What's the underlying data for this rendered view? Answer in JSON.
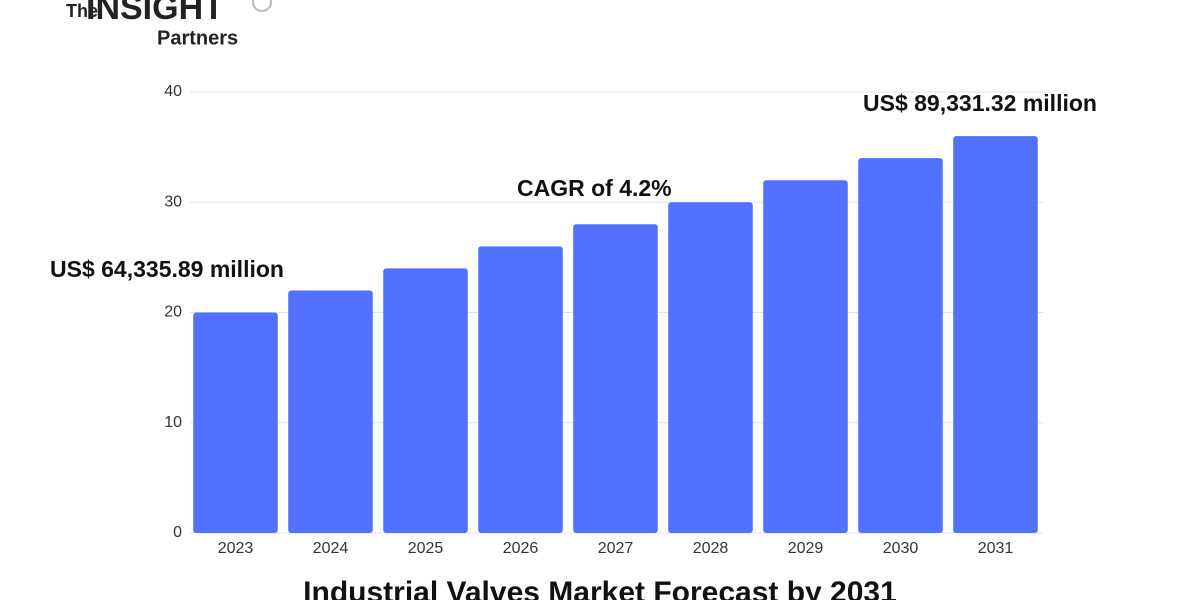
{
  "logo": {
    "top": "The",
    "main": "INSIGHT",
    "sub": "Partners"
  },
  "chart_data": {
    "type": "bar",
    "title": "Industrial Valves Market Forecast by 2031",
    "categories": [
      "2023",
      "2024",
      "2025",
      "2026",
      "2027",
      "2028",
      "2029",
      "2030",
      "2031"
    ],
    "values": [
      20,
      22,
      24,
      26,
      28,
      30,
      32,
      34,
      36
    ],
    "color": "#5271ff",
    "ylim": [
      0,
      40
    ],
    "yticks": [
      0,
      10,
      20,
      30,
      40
    ],
    "grid": true,
    "annotations": [
      "US$ 64,335.89 million",
      "CAGR of 4.2%",
      "US$ 89,331.32 million"
    ]
  }
}
